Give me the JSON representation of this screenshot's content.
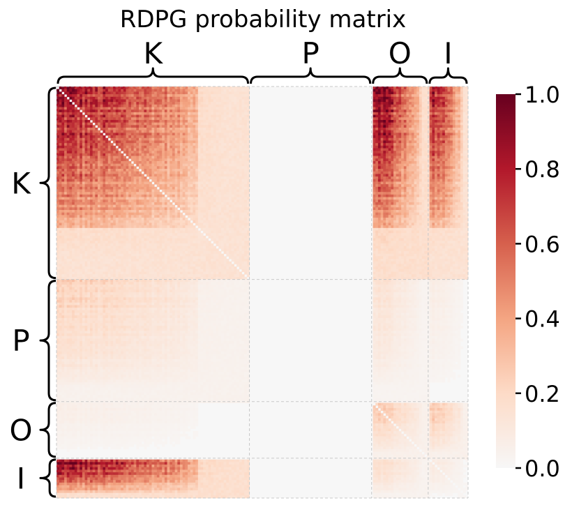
{
  "chart_data": {
    "type": "heatmap",
    "title": "RDPG probability matrix",
    "blocks": [
      {
        "name": "K",
        "size": 150
      },
      {
        "name": "P",
        "size": 95
      },
      {
        "name": "O",
        "size": 44
      },
      {
        "name": "I",
        "size": 31
      }
    ],
    "block_mean_probability": {
      "rows": [
        "K",
        "P",
        "O",
        "I"
      ],
      "cols": [
        "K",
        "P",
        "O",
        "I"
      ],
      "values": [
        [
          0.62,
          0.0,
          0.72,
          0.62
        ],
        [
          0.18,
          0.0,
          0.12,
          0.06
        ],
        [
          0.05,
          0.0,
          0.22,
          0.22
        ],
        [
          0.7,
          0.0,
          0.15,
          0.08
        ]
      ]
    },
    "colorbar": {
      "ticks": [
        "0.0",
        "0.2",
        "0.4",
        "0.6",
        "0.8",
        "1.0"
      ],
      "range": [
        0.0,
        1.0
      ],
      "colormap": [
        "#f7f7f7",
        "#fddbc7",
        "#f4a582",
        "#d6604d",
        "#b2182b",
        "#67001f"
      ]
    },
    "grid": false,
    "block_separators": "dashed"
  }
}
